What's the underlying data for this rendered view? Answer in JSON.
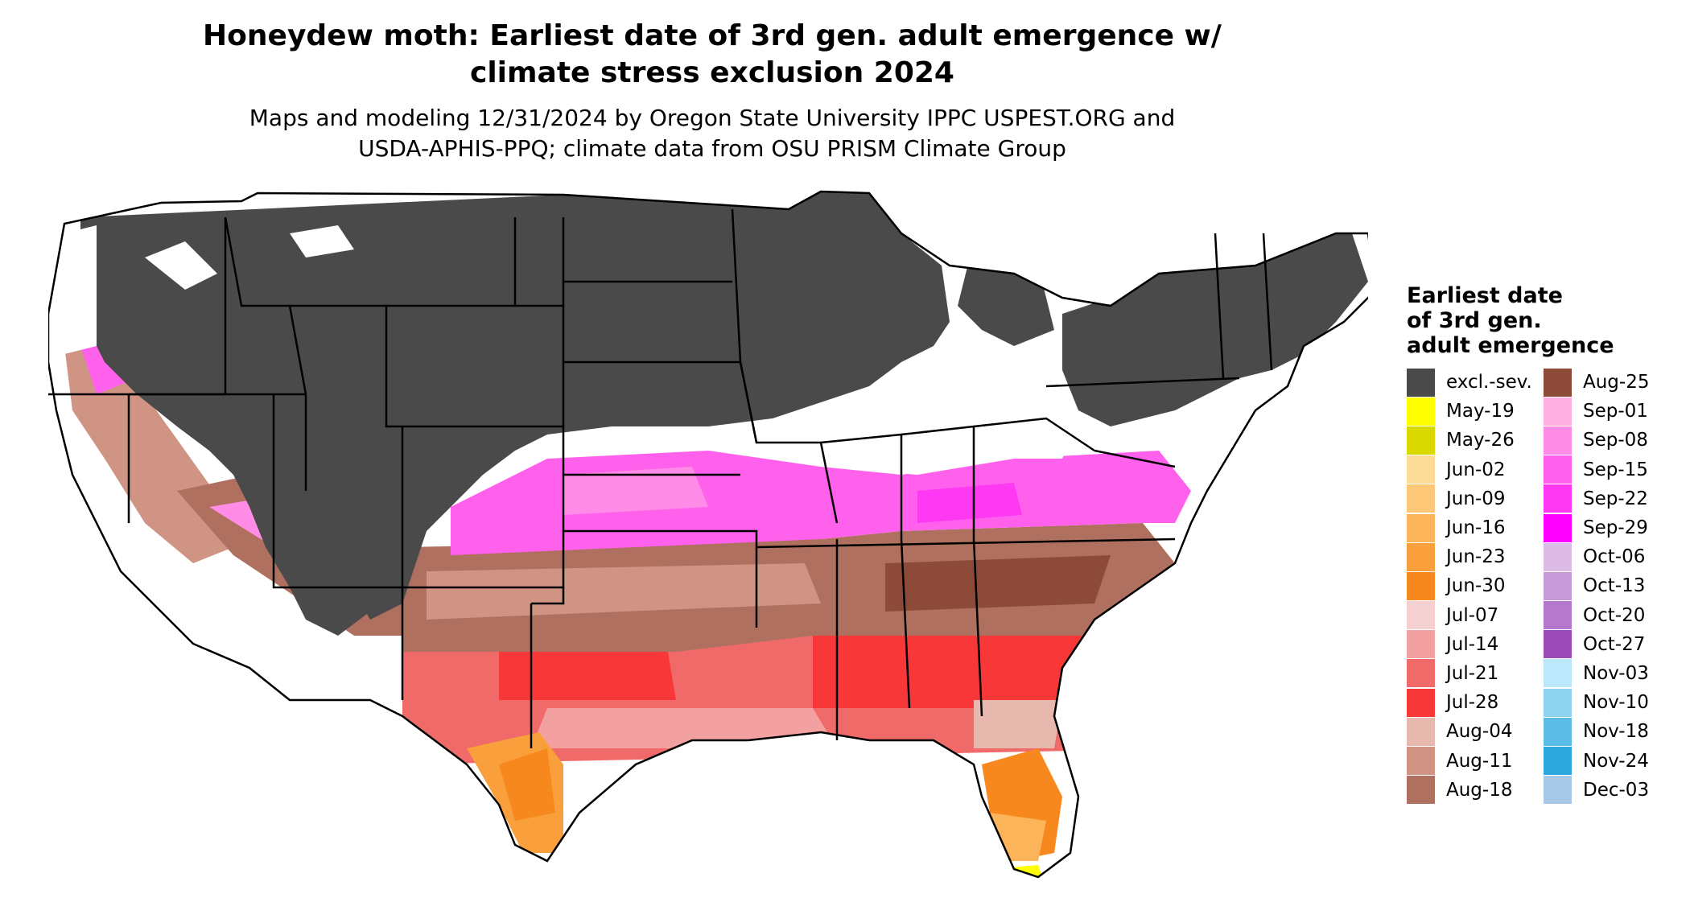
{
  "title": {
    "line1": "Honeydew moth: Earliest date of 3rd gen. adult emergence w/",
    "line2": "climate stress exclusion 2024"
  },
  "subtitle": {
    "line1": "Maps and modeling 12/31/2024 by Oregon State University IPPC USPEST.ORG and",
    "line2": "USDA-APHIS-PPQ; climate data from OSU PRISM Climate Group"
  },
  "legend": {
    "title_line1": "Earliest date",
    "title_line2": "of 3rd gen.",
    "title_line3": "adult emergence",
    "col1": [
      {
        "label": "excl.-sev.",
        "color": "#4a4a4a"
      },
      {
        "label": "May-19",
        "color": "#ffff00"
      },
      {
        "label": "May-26",
        "color": "#d9d900"
      },
      {
        "label": "Jun-02",
        "color": "#fcdc96"
      },
      {
        "label": "Jun-09",
        "color": "#fcc878"
      },
      {
        "label": "Jun-16",
        "color": "#fbb45a"
      },
      {
        "label": "Jun-23",
        "color": "#f9a03c"
      },
      {
        "label": "Jun-30",
        "color": "#f7881e"
      },
      {
        "label": "Jul-07",
        "color": "#f5d0d0"
      },
      {
        "label": "Jul-14",
        "color": "#f2a0a0"
      },
      {
        "label": "Jul-21",
        "color": "#f06a6a"
      },
      {
        "label": "Jul-28",
        "color": "#f83838"
      },
      {
        "label": "Aug-04",
        "color": "#e6b8ae"
      },
      {
        "label": "Aug-11",
        "color": "#cf9484"
      },
      {
        "label": "Aug-18",
        "color": "#b0705f"
      }
    ],
    "col2": [
      {
        "label": "Aug-25",
        "color": "#8e4a38"
      },
      {
        "label": "Sep-01",
        "color": "#ffb0e0"
      },
      {
        "label": "Sep-08",
        "color": "#ff8ce6"
      },
      {
        "label": "Sep-15",
        "color": "#ff60ec"
      },
      {
        "label": "Sep-22",
        "color": "#ff38f4"
      },
      {
        "label": "Sep-29",
        "color": "#ff00ff"
      },
      {
        "label": "Oct-06",
        "color": "#dcbce6"
      },
      {
        "label": "Oct-13",
        "color": "#c89ad8"
      },
      {
        "label": "Oct-20",
        "color": "#b478cc"
      },
      {
        "label": "Oct-27",
        "color": "#9c4cb8"
      },
      {
        "label": "Nov-03",
        "color": "#bce8fc"
      },
      {
        "label": "Nov-10",
        "color": "#8cd4f0"
      },
      {
        "label": "Nov-18",
        "color": "#5cbce8"
      },
      {
        "label": "Nov-24",
        "color": "#2ca8dc"
      },
      {
        "label": "Dec-03",
        "color": "#a8c8e8"
      }
    ]
  }
}
